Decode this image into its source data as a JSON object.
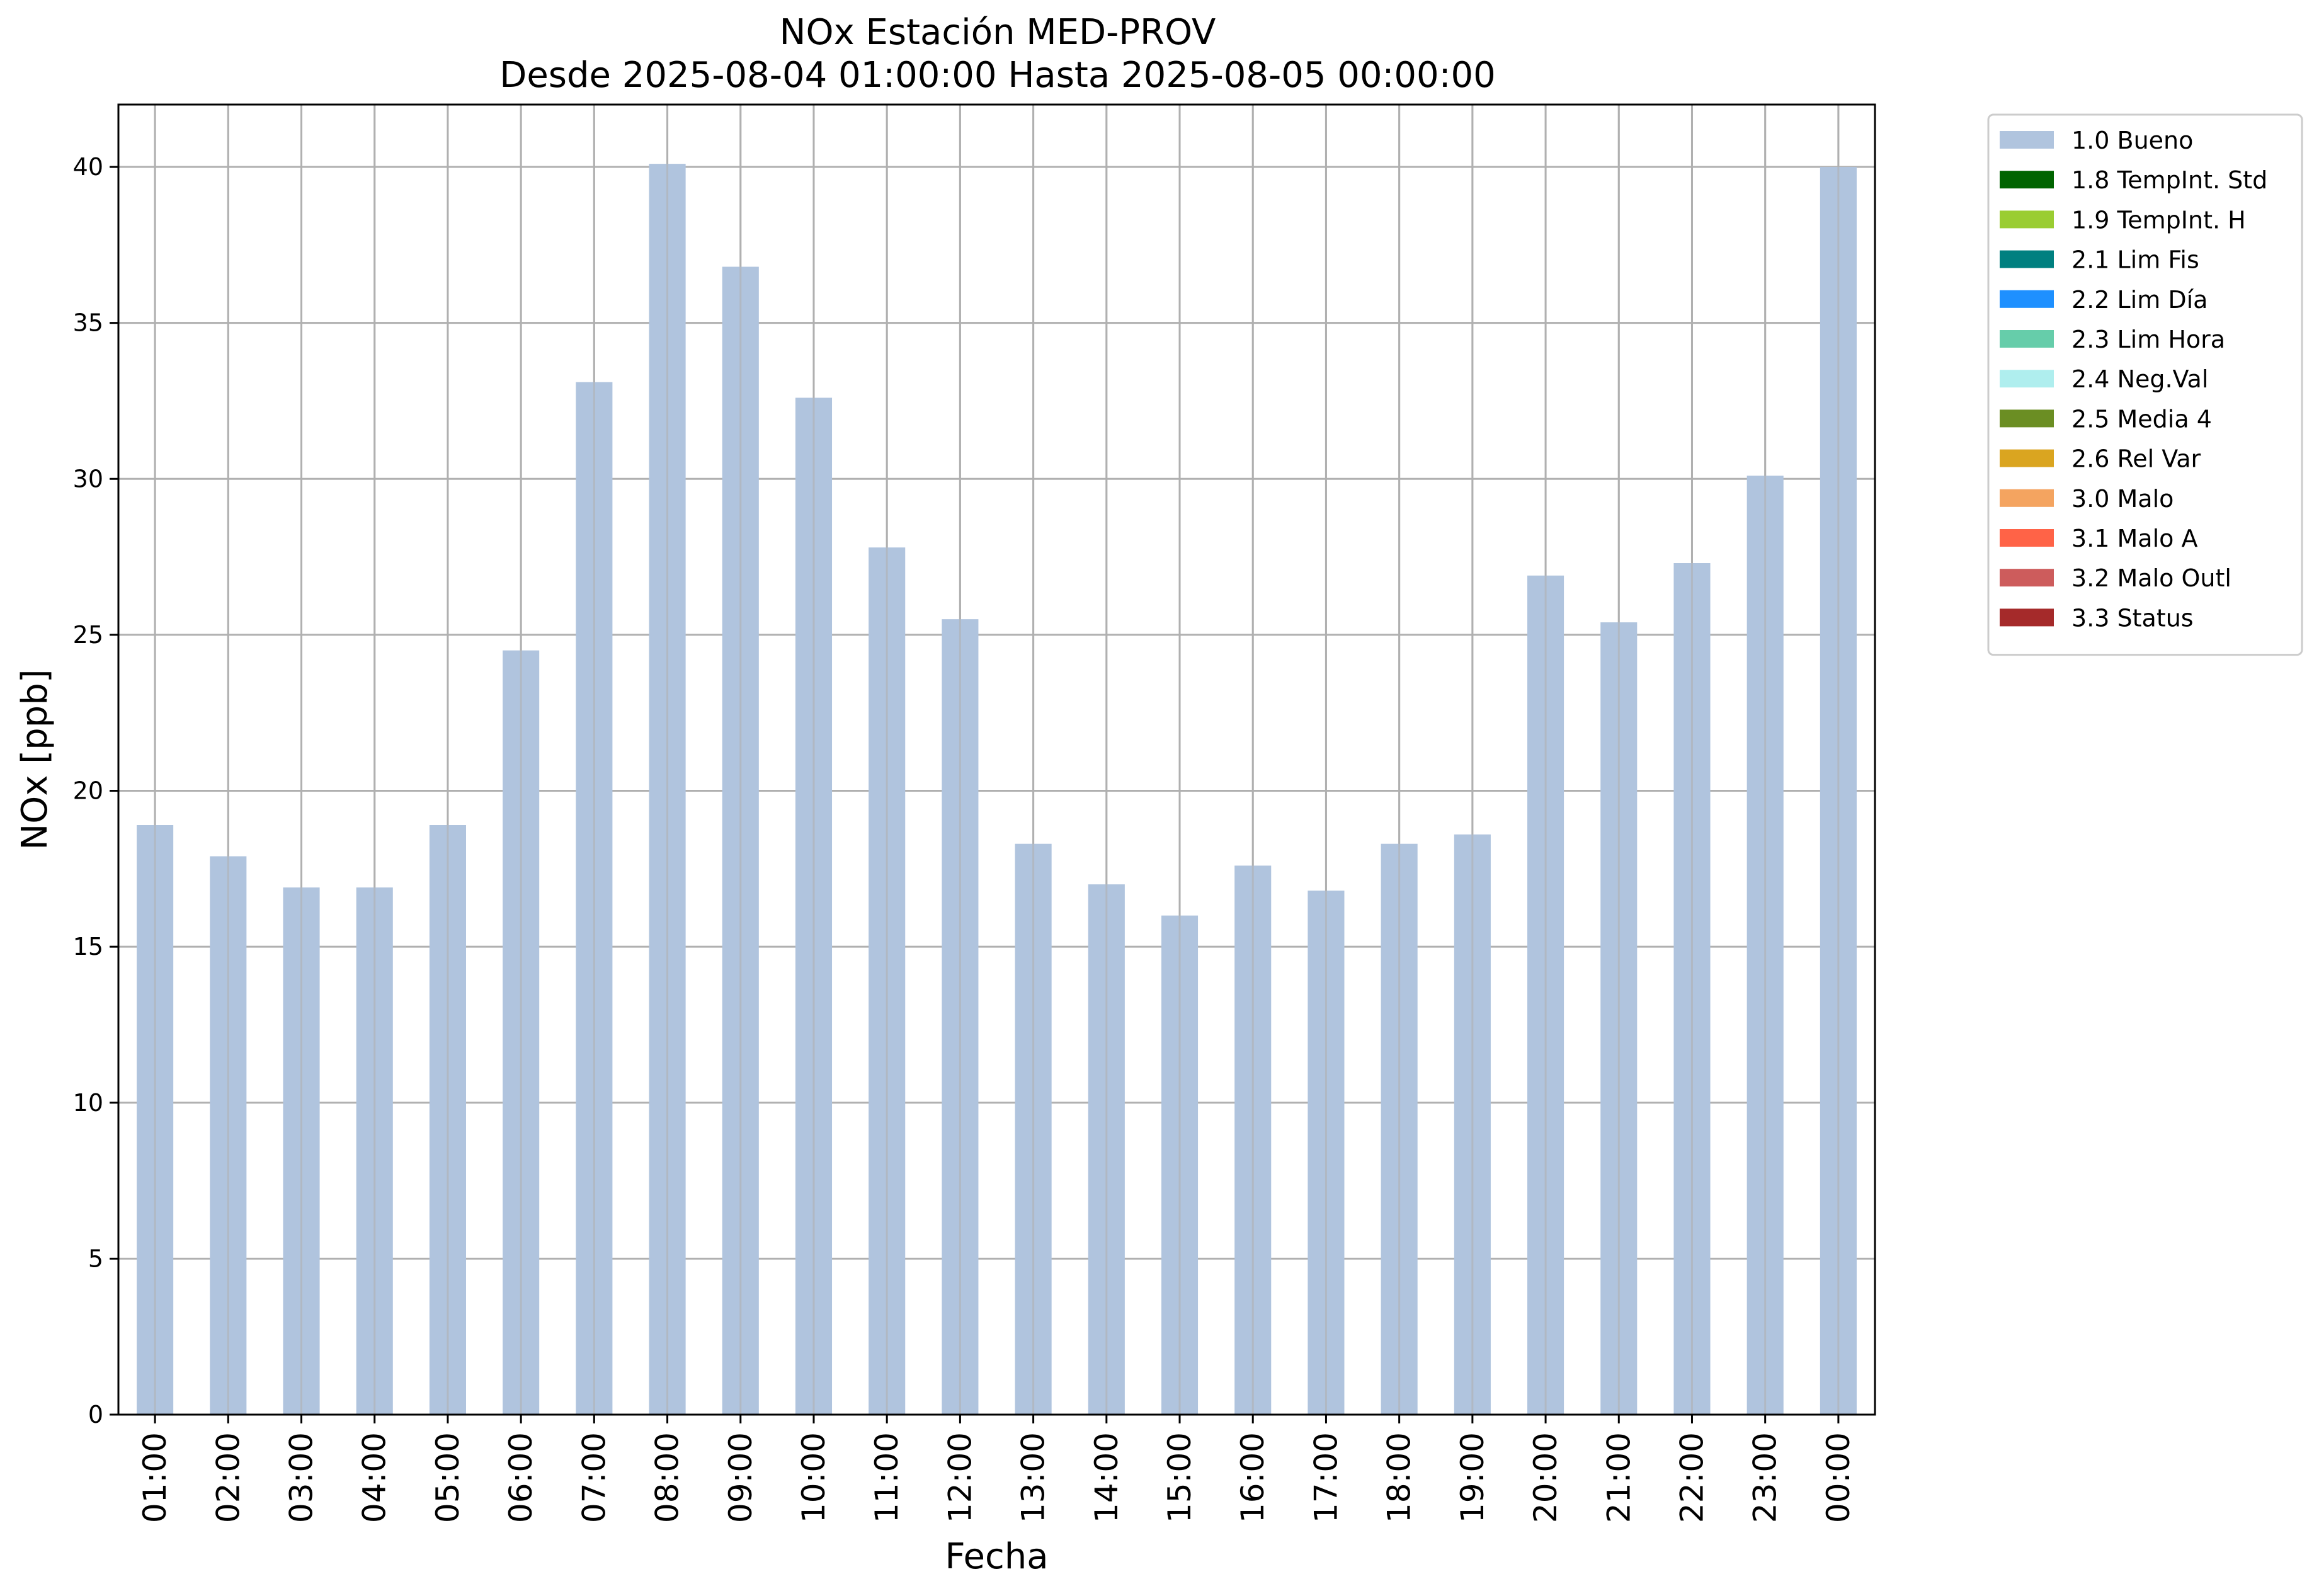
{
  "chart_data": {
    "type": "bar",
    "title": "NOx Estación MED-PROV",
    "subtitle": "Desde 2025-08-04 01:00:00 Hasta 2025-08-05 00:00:00",
    "xlabel": "Fecha",
    "ylabel": "NOx [ppb]",
    "ylim": [
      0,
      42
    ],
    "yticks": [
      0,
      5,
      10,
      15,
      20,
      25,
      30,
      35,
      40
    ],
    "grid": true,
    "legend_position": "outside-right",
    "bar_color": "#b0c4de",
    "categories": [
      "01:00",
      "02:00",
      "03:00",
      "04:00",
      "05:00",
      "06:00",
      "07:00",
      "08:00",
      "09:00",
      "10:00",
      "11:00",
      "12:00",
      "13:00",
      "14:00",
      "15:00",
      "16:00",
      "17:00",
      "18:00",
      "19:00",
      "20:00",
      "21:00",
      "22:00",
      "23:00",
      "00:00"
    ],
    "series": [
      {
        "name": "1.0 Bueno",
        "color": "#b0c4de",
        "values": [
          18.9,
          17.9,
          16.9,
          16.9,
          18.9,
          24.5,
          33.1,
          40.1,
          36.8,
          32.6,
          27.8,
          25.5,
          18.3,
          17.0,
          16.0,
          17.6,
          16.8,
          18.3,
          18.6,
          26.9,
          25.4,
          27.3,
          30.1,
          40.0
        ]
      }
    ],
    "legend": [
      {
        "label": "1.0 Bueno",
        "color": "#b0c4de"
      },
      {
        "label": "1.8 TempInt. Std",
        "color": "#006400"
      },
      {
        "label": "1.9 TempInt. H",
        "color": "#9acd32"
      },
      {
        "label": "2.1 Lim Fis",
        "color": "#008080"
      },
      {
        "label": "2.2 Lim Día",
        "color": "#1e90ff"
      },
      {
        "label": "2.3 Lim Hora",
        "color": "#66cdaa"
      },
      {
        "label": "2.4 Neg.Val",
        "color": "#afeeee"
      },
      {
        "label": "2.5 Media 4",
        "color": "#6b8e23"
      },
      {
        "label": "2.6 Rel Var",
        "color": "#daa520"
      },
      {
        "label": "3.0 Malo",
        "color": "#f4a460"
      },
      {
        "label": "3.1 Malo A",
        "color": "#ff6347"
      },
      {
        "label": "3.2 Malo Outl",
        "color": "#cd5c5c"
      },
      {
        "label": "3.3 Status",
        "color": "#a52a2a"
      }
    ]
  }
}
